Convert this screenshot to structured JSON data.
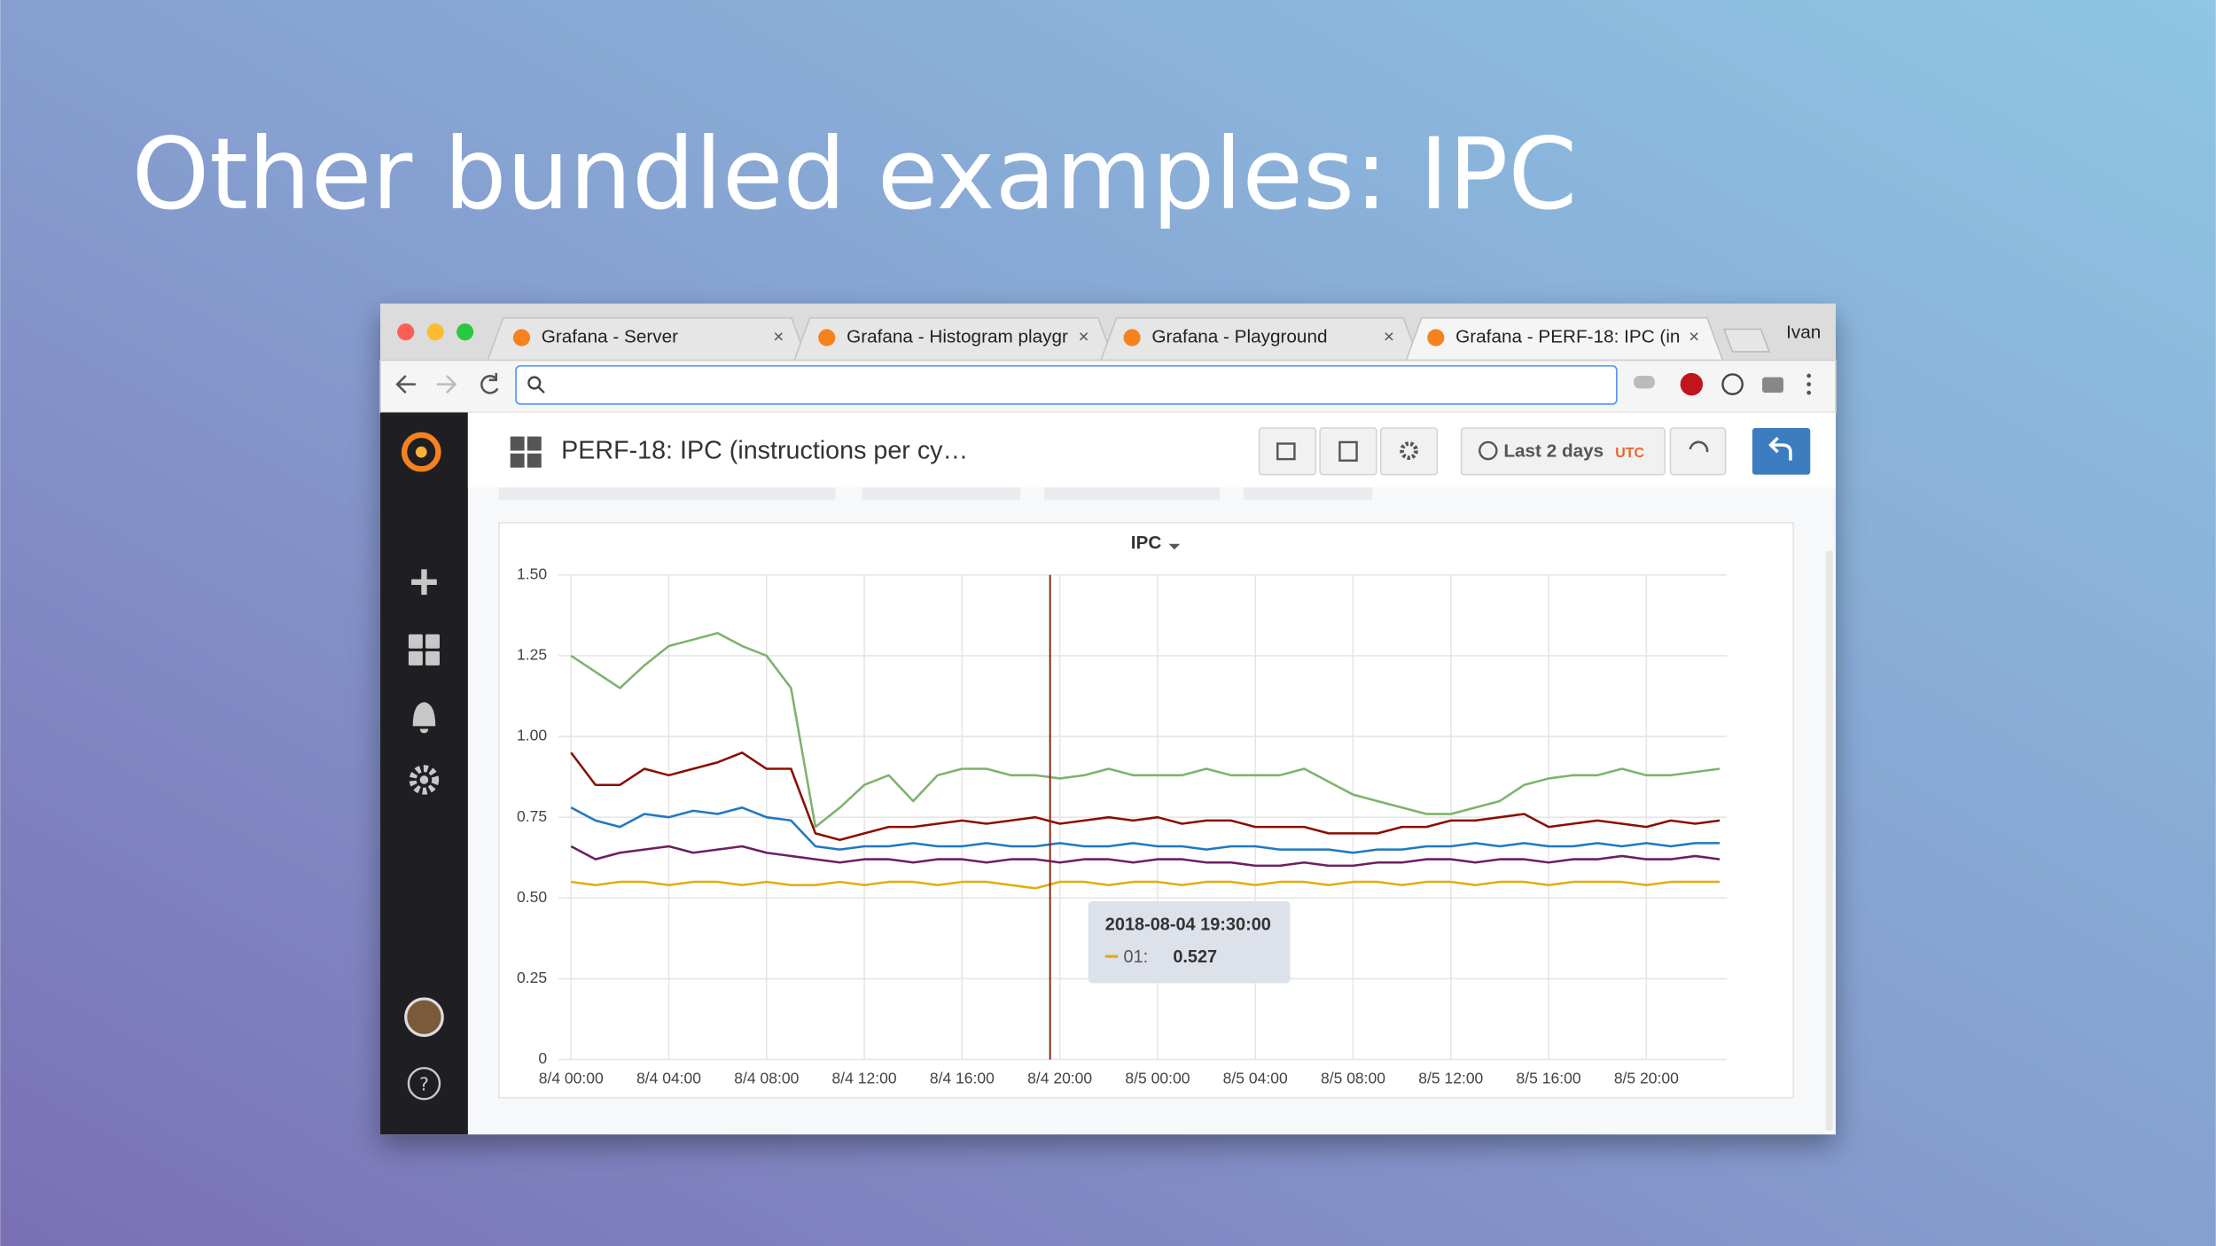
{
  "slide_title": "Other bundled examples: IPC",
  "browser": {
    "tabs": [
      "Grafana - Server",
      "Grafana - Histogram playgr",
      "Grafana - Playground",
      "Grafana - PERF-18: IPC (in"
    ],
    "user": "Ivan"
  },
  "grafana": {
    "dashboard_title": "PERF-18: IPC (instructions per cy…",
    "time_range": "Last 2 days",
    "timezone": "UTC"
  },
  "chart_data": {
    "type": "line",
    "title": "IPC",
    "categories": [
      "8/4 00:00",
      null,
      null,
      null,
      "8/4 04:00",
      null,
      null,
      null,
      "8/4 08:00",
      null,
      null,
      null,
      "8/4 12:00",
      null,
      null,
      null,
      "8/4 16:00",
      null,
      null,
      null,
      "8/4 20:00",
      null,
      null,
      null,
      "8/5 00:00",
      null,
      null,
      null,
      "8/5 04:00",
      null,
      null,
      null,
      "8/5 08:00",
      null,
      null,
      null,
      "8/5 12:00",
      null,
      null,
      null,
      "8/5 16:00",
      null,
      null,
      null,
      "8/5 20:00",
      null,
      null,
      null
    ],
    "series": [
      {
        "color": "#7eb26d",
        "values": [
          1.25,
          1.2,
          1.15,
          1.22,
          1.28,
          1.3,
          1.32,
          1.28,
          1.25,
          1.15,
          0.72,
          0.78,
          0.85,
          0.88,
          0.8,
          0.88,
          0.9,
          0.9,
          0.88,
          0.88,
          0.87,
          0.88,
          0.9,
          0.88,
          0.88,
          0.88,
          0.9,
          0.88,
          0.88,
          0.88,
          0.9,
          0.86,
          0.82,
          0.8,
          0.78,
          0.76,
          0.76,
          0.78,
          0.8,
          0.85,
          0.87,
          0.88,
          0.88,
          0.9,
          0.88,
          0.88,
          0.89,
          0.9
        ]
      },
      {
        "color": "#890f02",
        "values": [
          0.95,
          0.85,
          0.85,
          0.9,
          0.88,
          0.9,
          0.92,
          0.95,
          0.9,
          0.9,
          0.7,
          0.68,
          0.7,
          0.72,
          0.72,
          0.73,
          0.74,
          0.73,
          0.74,
          0.75,
          0.73,
          0.74,
          0.75,
          0.74,
          0.75,
          0.73,
          0.74,
          0.74,
          0.72,
          0.72,
          0.72,
          0.7,
          0.7,
          0.7,
          0.72,
          0.72,
          0.74,
          0.74,
          0.75,
          0.76,
          0.72,
          0.73,
          0.74,
          0.73,
          0.72,
          0.74,
          0.73,
          0.74
        ]
      },
      {
        "color": "#1f78c1",
        "values": [
          0.78,
          0.74,
          0.72,
          0.76,
          0.75,
          0.77,
          0.76,
          0.78,
          0.75,
          0.74,
          0.66,
          0.65,
          0.66,
          0.66,
          0.67,
          0.66,
          0.66,
          0.67,
          0.66,
          0.66,
          0.67,
          0.66,
          0.66,
          0.67,
          0.66,
          0.66,
          0.65,
          0.66,
          0.66,
          0.65,
          0.65,
          0.65,
          0.64,
          0.65,
          0.65,
          0.66,
          0.66,
          0.67,
          0.66,
          0.67,
          0.66,
          0.66,
          0.67,
          0.66,
          0.67,
          0.66,
          0.67,
          0.67
        ]
      },
      {
        "color": "#6d1f62",
        "values": [
          0.66,
          0.62,
          0.64,
          0.65,
          0.66,
          0.64,
          0.65,
          0.66,
          0.64,
          0.63,
          0.62,
          0.61,
          0.62,
          0.62,
          0.61,
          0.62,
          0.62,
          0.61,
          0.62,
          0.62,
          0.61,
          0.62,
          0.62,
          0.61,
          0.62,
          0.62,
          0.61,
          0.61,
          0.6,
          0.6,
          0.61,
          0.6,
          0.6,
          0.61,
          0.61,
          0.62,
          0.62,
          0.61,
          0.62,
          0.62,
          0.61,
          0.62,
          0.62,
          0.63,
          0.62,
          0.62,
          0.63,
          0.62
        ]
      },
      {
        "color": "#e5ac0e",
        "values": [
          0.55,
          0.54,
          0.55,
          0.55,
          0.54,
          0.55,
          0.55,
          0.54,
          0.55,
          0.54,
          0.54,
          0.55,
          0.54,
          0.55,
          0.55,
          0.54,
          0.55,
          0.55,
          0.54,
          0.53,
          0.55,
          0.55,
          0.54,
          0.55,
          0.55,
          0.54,
          0.55,
          0.55,
          0.54,
          0.55,
          0.55,
          0.54,
          0.55,
          0.55,
          0.54,
          0.55,
          0.55,
          0.54,
          0.55,
          0.55,
          0.54,
          0.55,
          0.55,
          0.55,
          0.54,
          0.55,
          0.55,
          0.55
        ]
      }
    ],
    "ylim": [
      0,
      1.5
    ],
    "yticks": [
      0,
      0.25,
      {
        "value": 0.5,
        "label": "0.50"
      },
      0.75,
      {
        "value": 1,
        "label": "1.00"
      },
      1.25,
      {
        "value": 1.5,
        "label": "1.50"
      }
    ],
    "grid": true
  },
  "tooltip": {
    "time": "2018-08-04 19:30:00",
    "series_label": "01:",
    "value": 0.527
  }
}
